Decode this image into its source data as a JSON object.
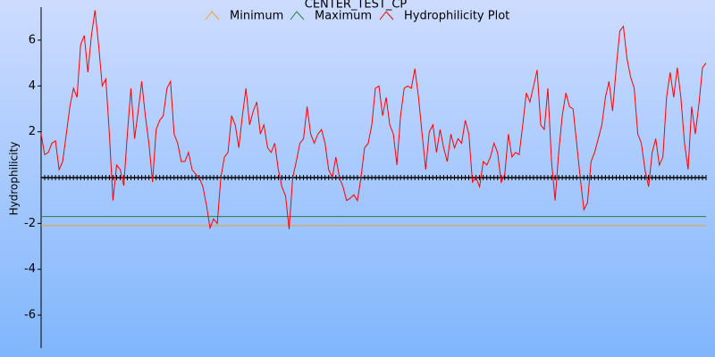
{
  "chart_data": {
    "type": "line",
    "title": "CENTER_TEST_CP",
    "ylabel": "Hydrophilicity",
    "ylim": [
      -7.4,
      7.4
    ],
    "yticks": [
      -6,
      -4,
      -2,
      2,
      4,
      6
    ],
    "reference_lines": [
      {
        "name": "Minimum",
        "color": "#f0a030",
        "value": -2.1
      },
      {
        "name": "Maximum",
        "color": "#208040",
        "value": -1.7
      }
    ],
    "series": [
      {
        "name": "Hydrophilicity Plot",
        "color": "#ff0000",
        "values": [
          1.9,
          1.0,
          1.1,
          1.5,
          1.6,
          0.35,
          0.7,
          1.9,
          3.1,
          3.9,
          3.5,
          5.8,
          6.2,
          4.6,
          6.2,
          7.3,
          5.8,
          4.0,
          4.3,
          1.9,
          -1.0,
          0.55,
          0.35,
          -0.35,
          1.9,
          3.9,
          1.7,
          2.9,
          4.2,
          2.7,
          1.5,
          -0.2,
          2.1,
          2.5,
          2.7,
          3.9,
          4.2,
          1.9,
          1.5,
          0.7,
          0.7,
          1.1,
          0.35,
          0.15,
          0,
          -0.4,
          -1.2,
          -2.2,
          -1.8,
          -2.0,
          0,
          0.9,
          1.1,
          2.7,
          2.3,
          1.3,
          2.7,
          3.9,
          2.3,
          2.9,
          3.3,
          1.9,
          2.3,
          1.3,
          1.1,
          1.5,
          0.35,
          -0.4,
          -0.8,
          -2.25,
          0,
          0.7,
          1.5,
          1.7,
          3.1,
          1.9,
          1.5,
          1.9,
          2.1,
          1.5,
          0.35,
          0,
          0.9,
          0,
          -0.4,
          -1.0,
          -0.9,
          -0.75,
          -1.0,
          0,
          1.3,
          1.5,
          2.3,
          3.9,
          4.0,
          2.7,
          3.5,
          2.3,
          1.9,
          0.55,
          2.7,
          3.9,
          4.0,
          3.9,
          4.75,
          3.5,
          1.9,
          0.35,
          2.0,
          2.3,
          1.1,
          2.1,
          1.3,
          0.7,
          1.9,
          1.3,
          1.7,
          1.5,
          2.5,
          1.9,
          -0.2,
          0,
          -0.4,
          0.7,
          0.55,
          0.9,
          1.5,
          1.1,
          -0.2,
          0.15,
          1.9,
          0.9,
          1.1,
          1.0,
          2.3,
          3.7,
          3.3,
          4.0,
          4.7,
          2.3,
          2.1,
          3.9,
          0.7,
          -1.0,
          1.1,
          2.7,
          3.7,
          3.1,
          3.0,
          1.5,
          0,
          -1.4,
          -1.1,
          0.7,
          1.1,
          1.7,
          2.3,
          3.5,
          4.2,
          2.9,
          4.8,
          6.4,
          6.6,
          5.2,
          4.4,
          3.9,
          1.9,
          1.5,
          0.35,
          -0.4,
          1.1,
          1.7,
          0.55,
          0.9,
          3.5,
          4.6,
          3.5,
          4.8,
          3.5,
          1.5,
          0.35,
          3.1,
          1.9,
          3.2,
          4.8,
          5.0
        ]
      }
    ]
  }
}
